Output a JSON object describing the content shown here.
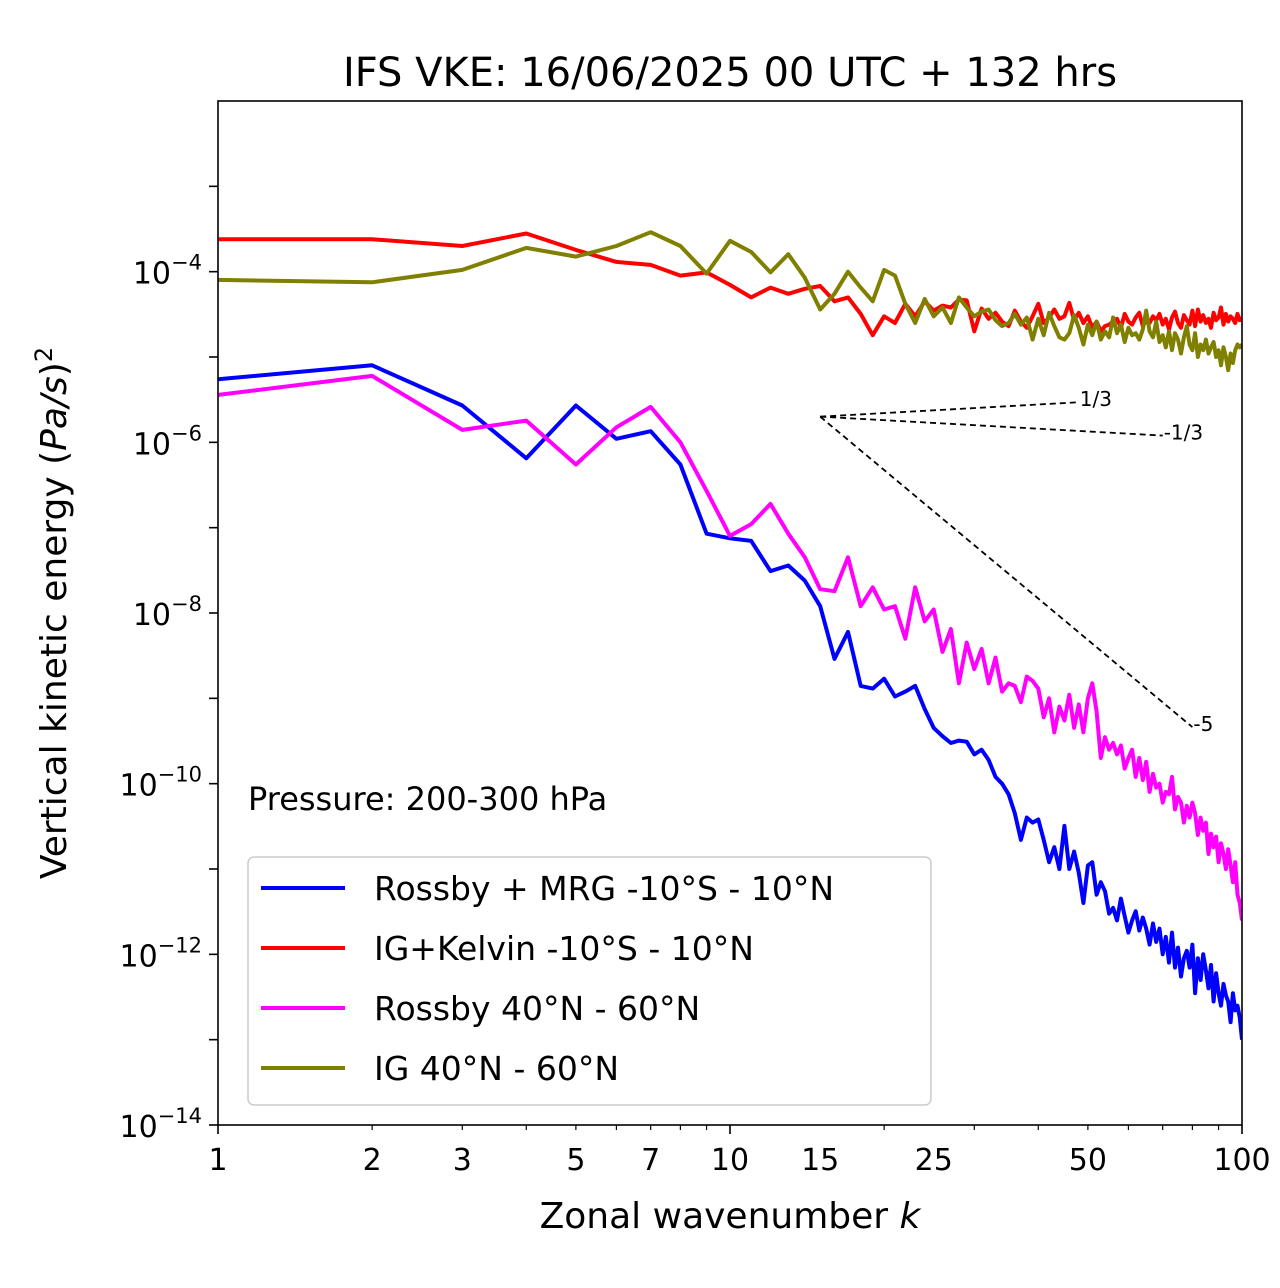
{
  "chart_data": {
    "type": "line",
    "title": "IFS VKE: 16/06/2025 00 UTC + 132 hrs",
    "xlabel": "Zonal wavenumber k",
    "ylabel": "Vertical kinetic energy (Pa/s)²",
    "annotation": "Pressure: 200-300 hPa",
    "xscale": "log",
    "yscale": "log",
    "xlim": [
      1,
      100
    ],
    "ylim": [
      1e-14,
      0.01
    ],
    "x_ticks": [
      {
        "value": 1,
        "label": "1"
      },
      {
        "value": 2,
        "label": "2"
      },
      {
        "value": 3,
        "label": "3"
      },
      {
        "value": 5,
        "label": "5"
      },
      {
        "value": 7,
        "label": "7"
      },
      {
        "value": 10,
        "label": "10"
      },
      {
        "value": 15,
        "label": "15"
      },
      {
        "value": 25,
        "label": "25"
      },
      {
        "value": 50,
        "label": "50"
      },
      {
        "value": 100,
        "label": "100"
      }
    ],
    "y_ticks": [
      {
        "exp": -14,
        "base": "10",
        "sup": "−14"
      },
      {
        "exp": -12,
        "base": "10",
        "sup": "−12"
      },
      {
        "exp": -10,
        "base": "10",
        "sup": "−10"
      },
      {
        "exp": -8,
        "base": "10",
        "sup": "−8"
      },
      {
        "exp": -6,
        "base": "10",
        "sup": "−6"
      },
      {
        "exp": -4,
        "base": "10",
        "sup": "−4"
      }
    ],
    "grid": false,
    "legend_position": "lower-left",
    "series": [
      {
        "name": "Rossby + MRG -10°S - 10°N",
        "color": "#0000ff",
        "x": [
          1,
          2,
          3,
          4,
          5,
          6,
          7,
          8,
          9,
          10,
          11,
          12,
          13,
          14,
          15,
          16,
          17,
          18,
          19,
          20,
          21,
          22,
          23,
          24,
          25,
          26,
          27,
          28,
          29,
          30,
          31,
          32,
          33,
          34,
          35,
          36,
          37,
          38,
          39,
          40,
          41,
          42,
          43,
          44,
          45,
          46,
          47,
          48,
          49,
          50,
          51,
          52,
          53,
          54,
          55,
          56,
          57,
          58,
          59,
          60,
          61,
          62,
          63,
          64,
          65,
          66,
          67,
          68,
          69,
          70,
          71,
          72,
          73,
          74,
          75,
          76,
          77,
          78,
          79,
          80,
          81,
          82,
          83,
          84,
          85,
          86,
          87,
          88,
          89,
          90,
          91,
          92,
          93,
          94,
          95,
          96,
          97,
          98,
          99,
          100
        ],
        "y": [
          5.5e-06,
          8e-06,
          2.7e-06,
          6.5e-07,
          2.7e-06,
          1.1e-06,
          1.35e-06,
          5.5e-07,
          8.5e-08,
          7.5e-08,
          7e-08,
          3.1e-08,
          3.6e-08,
          2.4e-08,
          1.2e-08,
          2.9e-09,
          6e-09,
          1.4e-09,
          1.3e-09,
          1.7e-09,
          1.05e-09,
          1.2e-09,
          1.4e-09,
          7.5e-10,
          4.5e-10,
          3.6e-10,
          3e-10,
          3.2e-10,
          3.1e-10,
          2.2e-10,
          2.5e-10,
          1.9e-10,
          1.2e-10,
          1e-10,
          7.5e-11,
          4.5e-11,
          2.2e-11,
          4e-11,
          3.5e-11,
          3.8e-11,
          2.2e-11,
          1.2e-11,
          1.8e-11,
          1e-11,
          3.2e-11,
          1e-11,
          1.6e-11,
          9e-12,
          4e-12,
          1.1e-11,
          1.2e-11,
          5e-12,
          7e-12,
          5.5e-12,
          3e-12,
          3.5e-12,
          2.5e-12,
          4.5e-12,
          2.8e-12,
          1.8e-12,
          2.5e-12,
          3.2e-12,
          1.9e-12,
          2.7e-12,
          2e-12,
          1.3e-12,
          2.3e-12,
          1.4e-12,
          2e-12,
          1e-12,
          1.6e-12,
          8e-13,
          1.8e-12,
          7e-13,
          1.2e-12,
          5.5e-13,
          9e-13,
          1.1e-12,
          7e-13,
          1.3e-12,
          3.5e-13,
          9e-13,
          5e-13,
          1e-12,
          6.5e-13,
          4e-13,
          7.5e-13,
          2.8e-13,
          6e-13,
          3.5e-13,
          2.5e-13,
          4.5e-13,
          3.3e-13,
          2.8e-13,
          1.6e-13,
          3.5e-13,
          2.2e-13,
          2.5e-13,
          1.8e-13,
          1e-13
        ]
      },
      {
        "name": "IG+Kelvin -10°S - 10°N",
        "color": "#ff0000",
        "x": [
          1,
          2,
          3,
          4,
          5,
          6,
          7,
          8,
          9,
          10,
          11,
          12,
          13,
          14,
          15,
          16,
          17,
          18,
          19,
          20,
          21,
          22,
          23,
          24,
          25,
          26,
          27,
          28,
          29,
          30,
          31,
          32,
          33,
          34,
          35,
          36,
          37,
          38,
          39,
          40,
          41,
          42,
          43,
          44,
          45,
          46,
          47,
          48,
          49,
          50,
          51,
          52,
          53,
          54,
          55,
          56,
          57,
          58,
          59,
          60,
          61,
          62,
          63,
          64,
          65,
          66,
          67,
          68,
          69,
          70,
          71,
          72,
          73,
          74,
          75,
          76,
          77,
          78,
          79,
          80,
          81,
          82,
          83,
          84,
          85,
          86,
          87,
          88,
          89,
          90,
          91,
          92,
          93,
          94,
          95,
          96,
          97,
          98,
          99,
          100
        ],
        "y": [
          0.00024,
          0.00024,
          0.0002,
          0.00028,
          0.00018,
          0.00013,
          0.00012,
          9e-05,
          9.8e-05,
          7e-05,
          5e-05,
          6.5e-05,
          5.5e-05,
          6.3e-05,
          6.8e-05,
          4.5e-05,
          5e-05,
          3.2e-05,
          1.8e-05,
          3e-05,
          2.5e-05,
          4.2e-05,
          3e-05,
          4.5e-05,
          3.5e-05,
          4e-05,
          3.8e-05,
          4.7e-05,
          4.6e-05,
          2e-05,
          3.7e-05,
          2.8e-05,
          3.3e-05,
          2.6e-05,
          2.3e-05,
          3.5e-05,
          2.6e-05,
          2.2e-05,
          3e-05,
          4.2e-05,
          2.5e-05,
          2.9e-05,
          3.6e-05,
          2.8e-05,
          3e-05,
          4.3e-05,
          2.7e-05,
          3.3e-05,
          2.5e-05,
          3e-05,
          2.2e-05,
          2.6e-05,
          2e-05,
          2.3e-05,
          2.4e-05,
          2.6e-05,
          2.8e-05,
          2.2e-05,
          3.2e-05,
          2.6e-05,
          2.4e-05,
          2.9e-05,
          3.3e-05,
          2.3e-05,
          2.7e-05,
          2.5e-05,
          3e-05,
          2.7e-05,
          3.2e-05,
          2.4e-05,
          2.8e-05,
          2.1e-05,
          2.9e-05,
          3.4e-05,
          2.5e-05,
          2.2e-05,
          3.1e-05,
          2.7e-05,
          2.4e-05,
          3.5e-05,
          2.3e-05,
          3.6e-05,
          2.6e-05,
          3.1e-05,
          2.5e-05,
          2.8e-05,
          2.2e-05,
          3.3e-05,
          2.7e-05,
          2.9e-05,
          3.8e-05,
          2.4e-05,
          3.2e-05,
          2.6e-05,
          3e-05,
          2.8e-05,
          2.5e-05,
          3.2e-05,
          2.7e-05,
          2.9e-05
        ]
      },
      {
        "name": "Rossby 40°N - 60°N",
        "color": "#ff00ff",
        "x": [
          1,
          2,
          3,
          4,
          5,
          6,
          7,
          8,
          9,
          10,
          11,
          12,
          13,
          14,
          15,
          16,
          17,
          18,
          19,
          20,
          21,
          22,
          23,
          24,
          25,
          26,
          27,
          28,
          29,
          30,
          31,
          32,
          33,
          34,
          35,
          36,
          37,
          38,
          39,
          40,
          41,
          42,
          43,
          44,
          45,
          46,
          47,
          48,
          49,
          50,
          51,
          52,
          53,
          54,
          55,
          56,
          57,
          58,
          59,
          60,
          61,
          62,
          63,
          64,
          65,
          66,
          67,
          68,
          69,
          70,
          71,
          72,
          73,
          74,
          75,
          76,
          77,
          78,
          79,
          80,
          81,
          82,
          83,
          84,
          85,
          86,
          87,
          88,
          89,
          90,
          91,
          92,
          93,
          94,
          95,
          96,
          97,
          98,
          99,
          100
        ],
        "y": [
          3.6e-06,
          6e-06,
          1.4e-06,
          1.8e-06,
          5.5e-07,
          1.5e-06,
          2.6e-06,
          1e-06,
          2.7e-07,
          8e-08,
          1.1e-07,
          1.9e-07,
          8.5e-08,
          4.5e-08,
          1.9e-08,
          1.8e-08,
          4.5e-08,
          1.2e-08,
          2e-08,
          1.1e-08,
          1.2e-08,
          5e-09,
          2e-08,
          8e-09,
          1.1e-08,
          3.5e-09,
          6.5e-09,
          1.5e-09,
          4.5e-09,
          2.2e-09,
          3.8e-09,
          1.5e-09,
          3e-09,
          1.2e-09,
          1.5e-09,
          1.4e-09,
          9e-10,
          1.8e-09,
          1.6e-09,
          1.3e-09,
          6e-10,
          1e-09,
          4e-10,
          8e-10,
          5.5e-10,
          1.1e-09,
          4.5e-10,
          8.5e-10,
          4e-10,
          1e-09,
          1.5e-09,
          7e-10,
          2e-10,
          3.5e-10,
          2.5e-10,
          3e-10,
          2.2e-10,
          2.8e-10,
          1.5e-10,
          2e-10,
          2.5e-10,
          1.2e-10,
          2e-10,
          1.1e-10,
          1.8e-10,
          8e-11,
          1.3e-10,
          9e-11,
          1e-10,
          6e-11,
          8e-11,
          7.5e-11,
          1.2e-10,
          5e-11,
          7e-11,
          6e-11,
          3.5e-11,
          5.5e-11,
          4e-11,
          6e-11,
          4.5e-11,
          2.5e-11,
          4e-11,
          2.8e-11,
          3.5e-11,
          1.5e-11,
          2.6e-11,
          1.8e-11,
          2.4e-11,
          1.2e-11,
          2e-11,
          1.5e-11,
          1e-11,
          1.7e-11,
          1.1e-11,
          7e-12,
          1.2e-11,
          5e-12,
          4e-12,
          2.5e-12
        ]
      },
      {
        "name": "IG 40°N - 60°N",
        "color": "#808000",
        "x": [
          1,
          2,
          3,
          4,
          5,
          6,
          7,
          8,
          9,
          10,
          11,
          12,
          13,
          14,
          15,
          16,
          17,
          18,
          19,
          20,
          21,
          22,
          23,
          24,
          25,
          26,
          27,
          28,
          29,
          30,
          31,
          32,
          33,
          34,
          35,
          36,
          37,
          38,
          39,
          40,
          41,
          42,
          43,
          44,
          45,
          46,
          47,
          48,
          49,
          50,
          51,
          52,
          53,
          54,
          55,
          56,
          57,
          58,
          59,
          60,
          61,
          62,
          63,
          64,
          65,
          66,
          67,
          68,
          69,
          70,
          71,
          72,
          73,
          74,
          75,
          76,
          77,
          78,
          79,
          80,
          81,
          82,
          83,
          84,
          85,
          86,
          87,
          88,
          89,
          90,
          91,
          92,
          93,
          94,
          95,
          96,
          97,
          98,
          99,
          100
        ],
        "y": [
          8e-05,
          7.5e-05,
          0.000105,
          0.00019,
          0.00015,
          0.0002,
          0.00029,
          0.0002,
          9.5e-05,
          0.00023,
          0.00017,
          9.8e-05,
          0.00016,
          8.5e-05,
          3.6e-05,
          5.5e-05,
          0.0001,
          6.5e-05,
          4.5e-05,
          0.000105,
          9e-05,
          4.2e-05,
          2.5e-05,
          4.8e-05,
          3e-05,
          3.8e-05,
          2.5e-05,
          5e-05,
          3.8e-05,
          3e-05,
          3.4e-05,
          3.6e-05,
          2.7e-05,
          2.3e-05,
          2.5e-05,
          3.2e-05,
          2.4e-05,
          2.9e-05,
          1.6e-05,
          2.8e-05,
          1.8e-05,
          3.3e-05,
          2.3e-05,
          1.7e-05,
          1.6e-05,
          1.9e-05,
          3.1e-05,
          2.2e-05,
          1.4e-05,
          2.4e-05,
          1.8e-05,
          2.6e-05,
          1.6e-05,
          2e-05,
          1.7e-05,
          2.9e-05,
          1.9e-05,
          2.4e-05,
          1.5e-05,
          2.2e-05,
          1.8e-05,
          1.9e-05,
          1.6e-05,
          2.1e-05,
          3.5e-05,
          2e-05,
          1.7e-05,
          2.6e-05,
          1.5e-05,
          1.8e-05,
          1.3e-05,
          2e-05,
          1.2e-05,
          1.9e-05,
          1.6e-05,
          1.1e-05,
          1.7e-05,
          2.3e-05,
          1.4e-05,
          1.2e-05,
          1.9e-05,
          1e-05,
          1.4e-05,
          1.2e-05,
          1.6e-05,
          1.1e-05,
          1.3e-05,
          1.5e-05,
          1e-05,
          1.2e-05,
          8e-06,
          1.3e-05,
          1e-05,
          7e-06,
          1.1e-05,
          8.5e-06,
          1.2e-05,
          1.4e-05,
          1.3e-05,
          1.4e-05
        ]
      }
    ],
    "slope_lines": [
      {
        "label": "1/3",
        "x0": 15,
        "y0": 2e-06,
        "x1": 48,
        "y1": 2.95e-06
      },
      {
        "label": "-1/3",
        "x0": 15,
        "y0": 2e-06,
        "x1": 70,
        "y1": 1.2e-06
      },
      {
        "label": "-5",
        "x0": 15,
        "y0": 2e-06,
        "x1": 80,
        "y1": 4.6e-10
      }
    ]
  }
}
